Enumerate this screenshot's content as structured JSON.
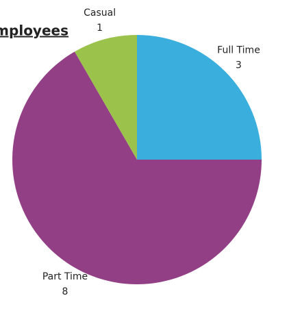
{
  "chart_data": {
    "type": "pie",
    "title": "Employees",
    "categories": [
      "Full Time",
      "Part Time",
      "Casual"
    ],
    "values": [
      3,
      8,
      1
    ],
    "colors": [
      "#3aaedd",
      "#923f86",
      "#9bc34b"
    ]
  }
}
